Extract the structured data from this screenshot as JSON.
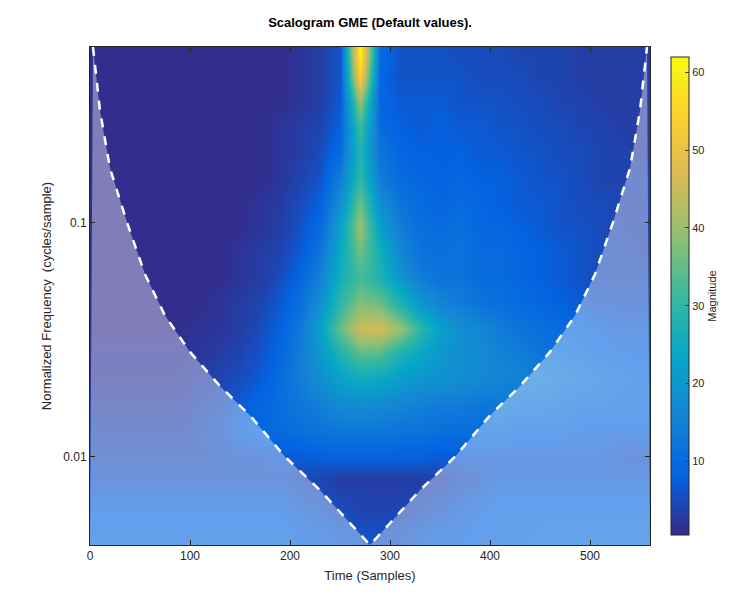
{
  "chart_data": {
    "type": "heatmap",
    "title": "Scalogram GME (Default values).",
    "x_label": "Time (Samples)",
    "y_label": "Normalized Frequency  (cycles/sample)",
    "log": "y",
    "xlim": [
      0,
      560
    ],
    "ylim": [
      0.0042,
      0.56
    ],
    "xticks": [
      0,
      100,
      200,
      300,
      400,
      500
    ],
    "yticks": [
      0.01,
      0.1
    ],
    "x": [
      10,
      30,
      50,
      70,
      90,
      110,
      130,
      150,
      170,
      190,
      210,
      230,
      250,
      270,
      290,
      310,
      330,
      350,
      370,
      390,
      410,
      430,
      450,
      470,
      490,
      510,
      530,
      550
    ],
    "y": [
      0.0045,
      0.006,
      0.008,
      0.01,
      0.013,
      0.017,
      0.022,
      0.028,
      0.035,
      0.045,
      0.058,
      0.075,
      0.095,
      0.12,
      0.155,
      0.2,
      0.26,
      0.33,
      0.42,
      0.53
    ],
    "z": [
      [
        9,
        9,
        9,
        9,
        9,
        9,
        9,
        9,
        9,
        9,
        8,
        8,
        7,
        6,
        6,
        6,
        7,
        8,
        8,
        9,
        9,
        9,
        10,
        10,
        10,
        10,
        10,
        10
      ],
      [
        8,
        8,
        8,
        8,
        8,
        8,
        8,
        8,
        8,
        8,
        7,
        6,
        5,
        4,
        4,
        4,
        5,
        6,
        7,
        8,
        9,
        9,
        9,
        9,
        9,
        9,
        9,
        9
      ],
      [
        6,
        6,
        6,
        6,
        6,
        6,
        6,
        6,
        6,
        6,
        5,
        4,
        3,
        3,
        3,
        3,
        3,
        4,
        5,
        6,
        7,
        7,
        7,
        7,
        7,
        7,
        7,
        7
      ],
      [
        5,
        5,
        5,
        5,
        5,
        5,
        5,
        6,
        6,
        7,
        7,
        8,
        8,
        8,
        8,
        8,
        8,
        7,
        7,
        7,
        7,
        7,
        7,
        7,
        7,
        7,
        6,
        6
      ],
      [
        4,
        4,
        4,
        4,
        4,
        5,
        6,
        8,
        9,
        10,
        11,
        12,
        13,
        13,
        13,
        12,
        12,
        11,
        11,
        10,
        10,
        9,
        9,
        9,
        8,
        8,
        8,
        8
      ],
      [
        3,
        3,
        3,
        3,
        3,
        4,
        5,
        7,
        9,
        11,
        13,
        15,
        17,
        18,
        17,
        16,
        15,
        14,
        14,
        13,
        13,
        12,
        12,
        11,
        10,
        10,
        9,
        9
      ],
      [
        2,
        2,
        2,
        2,
        2,
        3,
        4,
        5,
        7,
        10,
        14,
        18,
        23,
        26,
        25,
        22,
        20,
        19,
        18,
        17,
        16,
        15,
        14,
        13,
        12,
        11,
        10,
        9
      ],
      [
        2,
        2,
        2,
        2,
        2,
        2,
        3,
        4,
        6,
        9,
        14,
        20,
        28,
        35,
        34,
        28,
        24,
        20,
        18,
        17,
        15,
        14,
        12,
        11,
        10,
        9,
        8,
        8
      ],
      [
        1,
        1,
        1,
        1,
        1,
        2,
        2,
        3,
        5,
        8,
        13,
        22,
        35,
        45,
        46,
        40,
        30,
        22,
        18,
        16,
        14,
        12,
        11,
        10,
        9,
        8,
        7,
        7
      ],
      [
        1,
        1,
        1,
        1,
        1,
        1,
        2,
        3,
        4,
        7,
        11,
        18,
        30,
        38,
        36,
        28,
        20,
        16,
        14,
        12,
        11,
        10,
        9,
        8,
        7,
        6,
        6,
        6
      ],
      [
        1,
        1,
        1,
        1,
        1,
        1,
        1,
        2,
        3,
        5,
        9,
        15,
        26,
        32,
        28,
        20,
        14,
        12,
        12,
        10,
        10,
        9,
        8,
        7,
        6,
        5,
        5,
        5
      ],
      [
        1,
        1,
        1,
        1,
        1,
        1,
        1,
        2,
        3,
        4,
        7,
        12,
        24,
        36,
        26,
        16,
        12,
        11,
        12,
        10,
        10,
        9,
        8,
        7,
        6,
        5,
        5,
        4
      ],
      [
        1,
        1,
        1,
        1,
        1,
        1,
        1,
        1,
        2,
        3,
        6,
        10,
        22,
        40,
        22,
        14,
        11,
        10,
        11,
        9,
        9,
        8,
        7,
        6,
        6,
        5,
        4,
        4
      ],
      [
        1,
        1,
        1,
        1,
        1,
        1,
        1,
        1,
        2,
        3,
        5,
        8,
        18,
        36,
        18,
        12,
        10,
        9,
        10,
        9,
        8,
        7,
        7,
        6,
        5,
        5,
        4,
        4
      ],
      [
        1,
        1,
        1,
        1,
        1,
        1,
        1,
        1,
        1,
        2,
        4,
        6,
        14,
        30,
        14,
        10,
        9,
        8,
        9,
        8,
        8,
        7,
        6,
        6,
        5,
        4,
        4,
        4
      ],
      [
        1,
        1,
        1,
        1,
        1,
        1,
        1,
        1,
        1,
        2,
        3,
        5,
        10,
        28,
        12,
        9,
        8,
        8,
        8,
        7,
        7,
        6,
        6,
        5,
        5,
        4,
        4,
        3
      ],
      [
        1,
        1,
        1,
        1,
        1,
        1,
        1,
        1,
        1,
        2,
        3,
        4,
        8,
        32,
        10,
        8,
        7,
        8,
        7,
        7,
        6,
        6,
        5,
        5,
        4,
        4,
        3,
        3
      ],
      [
        1,
        1,
        1,
        1,
        1,
        1,
        1,
        1,
        1,
        1,
        2,
        3,
        7,
        40,
        9,
        7,
        7,
        7,
        6,
        6,
        6,
        5,
        5,
        4,
        4,
        3,
        3,
        3
      ],
      [
        1,
        1,
        1,
        1,
        1,
        1,
        1,
        1,
        1,
        1,
        2,
        3,
        6,
        55,
        9,
        6,
        6,
        6,
        6,
        5,
        5,
        5,
        4,
        4,
        3,
        3,
        3,
        3
      ],
      [
        1,
        1,
        1,
        1,
        1,
        1,
        1,
        1,
        1,
        1,
        2,
        3,
        6,
        62,
        10,
        6,
        6,
        6,
        5,
        5,
        5,
        4,
        4,
        4,
        3,
        3,
        3,
        3
      ]
    ],
    "colorbar": {
      "title": "Magnitude",
      "range": [
        0.5,
        62
      ],
      "ticks": [
        10,
        20,
        30,
        40,
        50,
        60
      ]
    },
    "coi": {
      "x": [
        3,
        10,
        20,
        37,
        55,
        75,
        100,
        130,
        160,
        195,
        230,
        260,
        280,
        300,
        330,
        365,
        400,
        430,
        460,
        485,
        505,
        523,
        540,
        550,
        557
      ],
      "y": [
        0.56,
        0.3,
        0.17,
        0.1,
        0.06,
        0.04,
        0.028,
        0.02,
        0.015,
        0.01,
        0.0072,
        0.0052,
        0.0042,
        0.0052,
        0.0072,
        0.01,
        0.015,
        0.02,
        0.028,
        0.04,
        0.06,
        0.1,
        0.17,
        0.3,
        0.56
      ],
      "line_style": "dash",
      "color": "#ffffff"
    }
  }
}
